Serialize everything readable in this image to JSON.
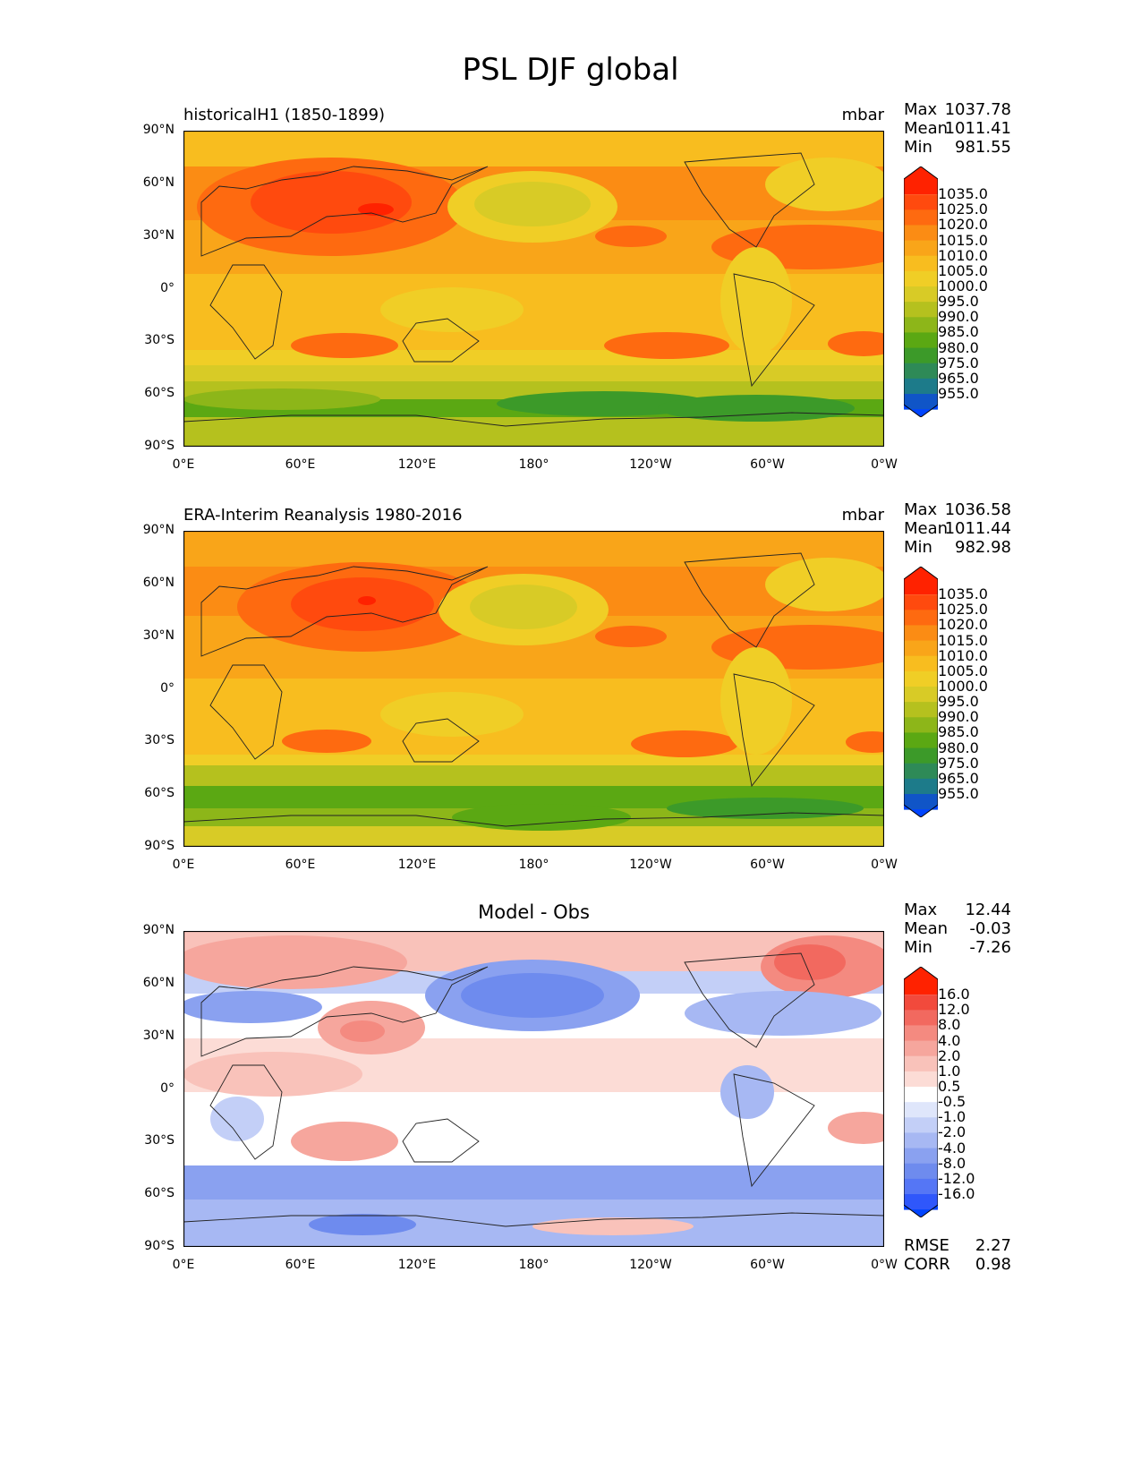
{
  "figure_title": "PSL DJF global",
  "y_ticks": [
    "90°N",
    "60°N",
    "30°N",
    "0°",
    "30°S",
    "60°S",
    "90°S"
  ],
  "x_ticks": [
    "0°E",
    "60°E",
    "120°E",
    "180°",
    "120°W",
    "60°W",
    "0°W"
  ],
  "chart_data": [
    {
      "type": "heatmap",
      "title": "historicalH1 (1850-1899)",
      "units": "mbar",
      "stats": [
        {
          "label": "Max",
          "value": "1037.78"
        },
        {
          "label": "Mean",
          "value": "1011.41"
        },
        {
          "label": "Min",
          "value": "981.55"
        }
      ],
      "colorbar": {
        "labels": [
          "1035.0",
          "1025.0",
          "1020.0",
          "1015.0",
          "1010.0",
          "1005.0",
          "1000.0",
          "995.0",
          "990.0",
          "985.0",
          "980.0",
          "975.0",
          "965.0",
          "955.0"
        ],
        "colors": [
          "#ff2200",
          "#ff4a0e",
          "#fe6a10",
          "#fb8c14",
          "#f9a519",
          "#f8bd1f",
          "#f0ce26",
          "#d8cb26",
          "#b5c11e",
          "#8db619",
          "#5ba813",
          "#3c9a29",
          "#2e8a57",
          "#1d7b8a",
          "#1055c7",
          "#0044ff"
        ]
      }
    },
    {
      "type": "heatmap",
      "title": "ERA-Interim Reanalysis 1980-2016",
      "units": "mbar",
      "stats": [
        {
          "label": "Max",
          "value": "1036.58"
        },
        {
          "label": "Mean",
          "value": "1011.44"
        },
        {
          "label": "Min",
          "value": "982.98"
        }
      ],
      "colorbar": {
        "labels": [
          "1035.0",
          "1025.0",
          "1020.0",
          "1015.0",
          "1010.0",
          "1005.0",
          "1000.0",
          "995.0",
          "990.0",
          "985.0",
          "980.0",
          "975.0",
          "965.0",
          "955.0"
        ],
        "colors": [
          "#ff2200",
          "#ff4a0e",
          "#fe6a10",
          "#fb8c14",
          "#f9a519",
          "#f8bd1f",
          "#f0ce26",
          "#d8cb26",
          "#b5c11e",
          "#8db619",
          "#5ba813",
          "#3c9a29",
          "#2e8a57",
          "#1d7b8a",
          "#1055c7",
          "#0044ff"
        ]
      }
    },
    {
      "type": "heatmap",
      "title": "Model - Obs",
      "units": "",
      "stats": [
        {
          "label": "Max",
          "value": "12.44"
        },
        {
          "label": "Mean",
          "value": "-0.03"
        },
        {
          "label": "Min",
          "value": "-7.26"
        }
      ],
      "metrics": [
        {
          "label": "RMSE",
          "value": "2.27"
        },
        {
          "label": "CORR",
          "value": "0.98"
        }
      ],
      "colorbar": {
        "labels": [
          "16.0",
          "12.0",
          "8.0",
          "4.0",
          "2.0",
          "1.0",
          "0.5",
          "-0.5",
          "-1.0",
          "-2.0",
          "-4.0",
          "-8.0",
          "-12.0",
          "-16.0"
        ],
        "colors": [
          "#ff2200",
          "#f24a3c",
          "#f2695f",
          "#f48a80",
          "#f6a69d",
          "#f9c2ba",
          "#fcdcd6",
          "#ffffff",
          "#dfe6fb",
          "#c3cff7",
          "#a7b8f3",
          "#8aa1f0",
          "#6e8bee",
          "#5576f5",
          "#2f57fb",
          "#0044ff"
        ]
      }
    }
  ]
}
